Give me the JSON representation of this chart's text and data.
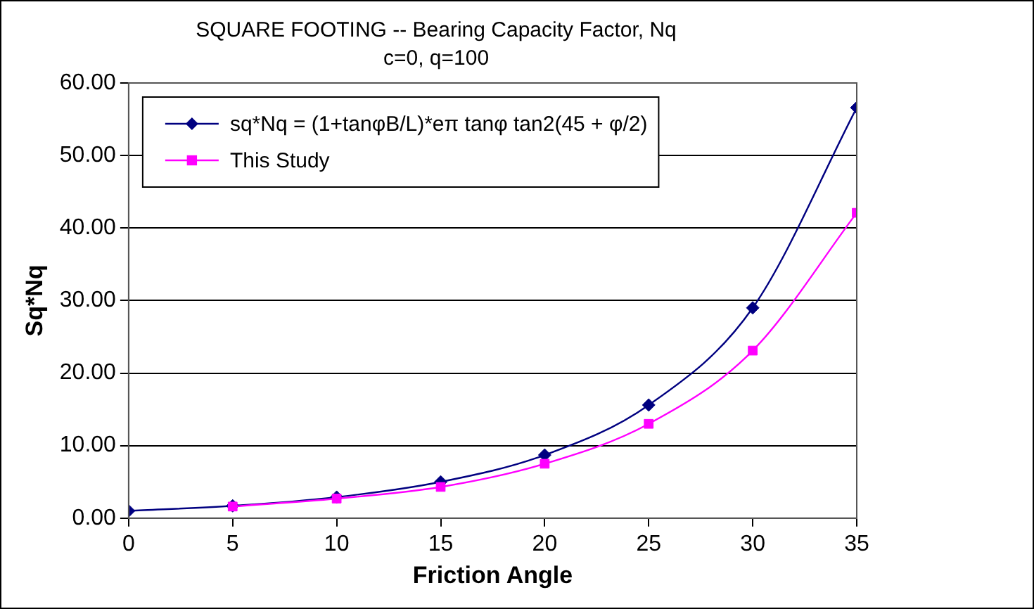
{
  "chart_data": {
    "type": "line",
    "title": "SQUARE FOOTING -- Bearing Capacity Factor, Nq",
    "subtitle": "c=0, q=100",
    "xlabel": "Friction Angle",
    "ylabel": "Sq*Nq",
    "x": [
      0,
      5,
      10,
      15,
      20,
      25,
      30,
      35
    ],
    "series": [
      {
        "name": "sq*Nq = (1+tanφB/L)*eπ tanφ tan2(45 + φ/2)",
        "color": "#000080",
        "marker": "diamond",
        "values": [
          1.0,
          1.7,
          2.9,
          5.0,
          8.7,
          15.6,
          29.0,
          56.6
        ]
      },
      {
        "name": "This Study",
        "color": "#ff00ff",
        "marker": "square",
        "values": [
          null,
          1.6,
          2.7,
          4.3,
          7.5,
          13.0,
          23.1,
          42.1
        ]
      }
    ],
    "xlim": [
      0,
      35
    ],
    "xticks": [
      0,
      5,
      10,
      15,
      20,
      25,
      30,
      35
    ],
    "ylim": [
      0,
      60
    ],
    "yticks": [
      {
        "value": 0,
        "label": "0.00"
      },
      {
        "value": 10,
        "label": "10.00"
      },
      {
        "value": 20,
        "label": "20.00"
      },
      {
        "value": 30,
        "label": "30.00"
      },
      {
        "value": 40,
        "label": "40.00"
      },
      {
        "value": 50,
        "label": "50.00"
      },
      {
        "value": 60,
        "label": "60.00"
      }
    ],
    "grid": "y",
    "legend": "top left"
  }
}
